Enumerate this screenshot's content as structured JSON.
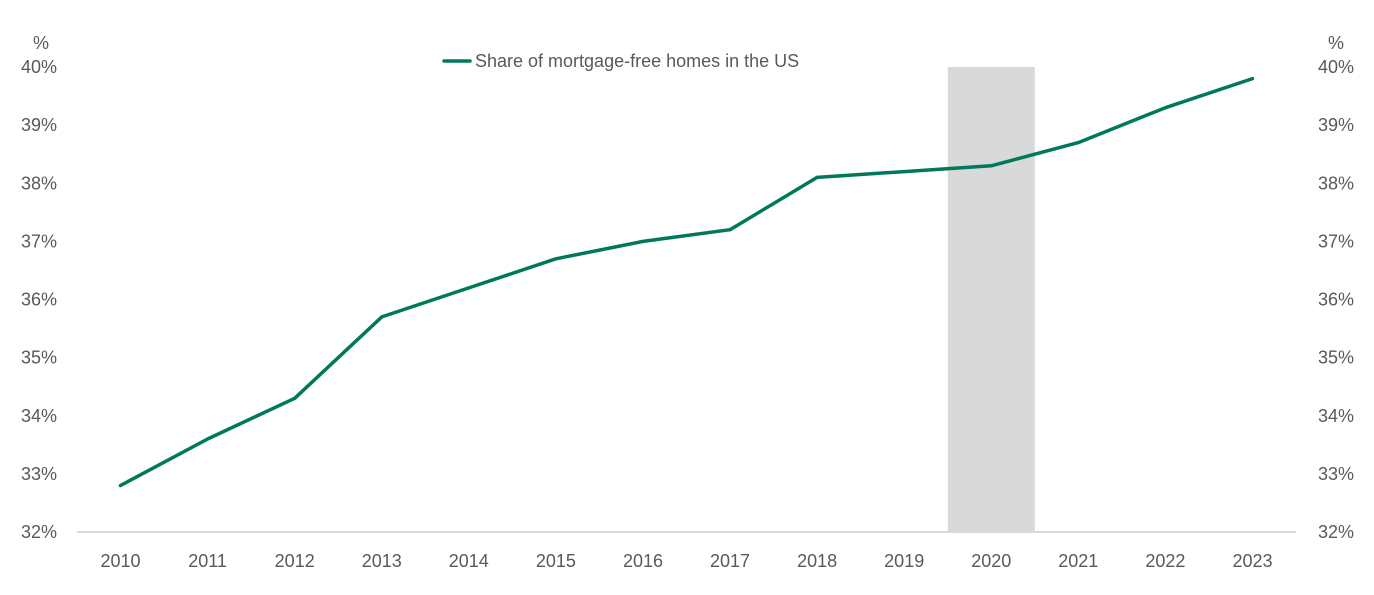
{
  "chart_data": {
    "type": "line",
    "categories": [
      "2010",
      "2011",
      "2012",
      "2013",
      "2014",
      "2015",
      "2016",
      "2017",
      "2018",
      "2019",
      "2020",
      "2021",
      "2022",
      "2023"
    ],
    "series": [
      {
        "name": "Share of mortgage-free homes in the US",
        "values": [
          32.8,
          33.6,
          34.3,
          35.7,
          36.2,
          36.7,
          37.0,
          37.2,
          38.1,
          38.2,
          38.3,
          38.7,
          39.3,
          39.8
        ],
        "color": "#00785a"
      }
    ],
    "shaded_period": "2020",
    "shade_color": "#d9d9d9",
    "ylim": [
      32,
      40
    ],
    "yticks": [
      "32%",
      "33%",
      "34%",
      "35%",
      "36%",
      "37%",
      "38%",
      "39%",
      "40%"
    ],
    "y_unit_left": "%",
    "y_unit_right": "%",
    "legend_position": "top-center",
    "grid": false
  }
}
